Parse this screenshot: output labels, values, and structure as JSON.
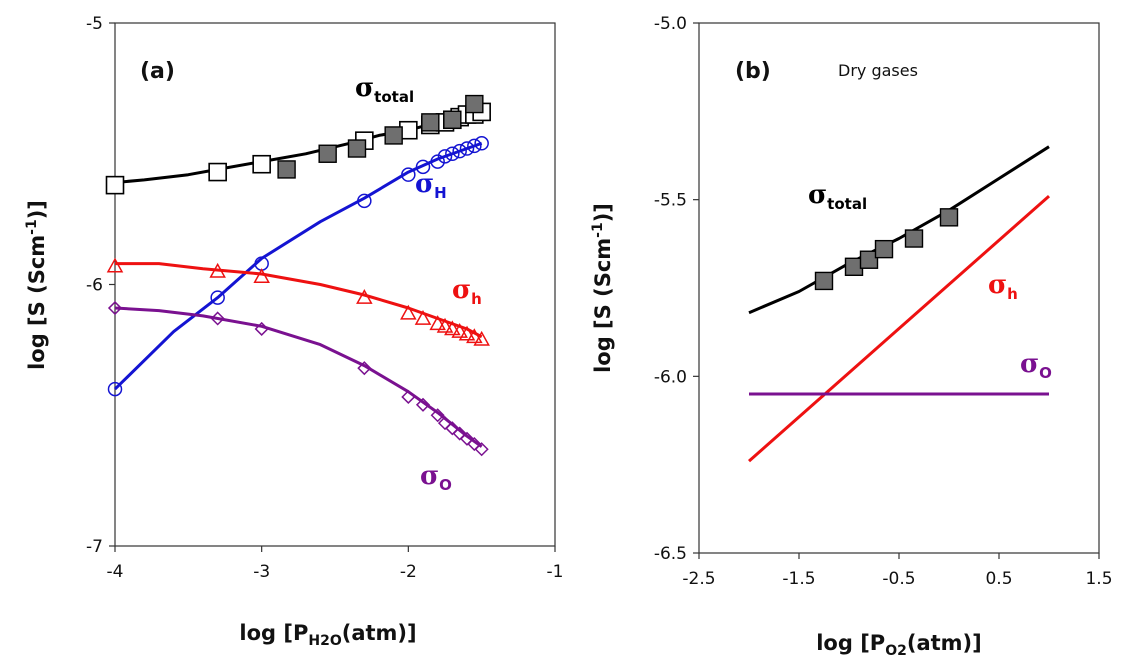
{
  "chart_data": [
    {
      "type": "line",
      "panel_label": "(a)",
      "xlabel": "log [P",
      "xlabel_sub": "H2O",
      "xlabel_tail": "(atm)]",
      "ylabel": "log [S (Scm",
      "ylabel_sup": "-1",
      "ylabel_tail": ")]",
      "xlim": [
        -4,
        -1
      ],
      "ylim": [
        -7,
        -5
      ],
      "xticks": [
        "-4",
        "-3",
        "-2",
        "-1"
      ],
      "yticks": [
        "-5",
        "-6",
        "-7"
      ],
      "series": [
        {
          "key": "total",
          "symbol": "σ",
          "label_sub": "total",
          "color": "#000000",
          "line": [
            [
              -4.0,
              -5.61
            ],
            [
              -3.8,
              -5.6
            ],
            [
              -3.5,
              -5.58
            ],
            [
              -3.3,
              -5.56
            ],
            [
              -3.0,
              -5.53
            ],
            [
              -2.7,
              -5.5
            ],
            [
              -2.4,
              -5.46
            ],
            [
              -2.2,
              -5.43
            ],
            [
              -2.0,
              -5.41
            ],
            [
              -1.8,
              -5.38
            ],
            [
              -1.6,
              -5.36
            ],
            [
              -1.5,
              -5.35
            ]
          ],
          "markers_open": [
            [
              -4.0,
              -5.62
            ],
            [
              -3.3,
              -5.57
            ],
            [
              -3.0,
              -5.54
            ],
            [
              -2.3,
              -5.45
            ],
            [
              -2.0,
              -5.41
            ],
            [
              -1.85,
              -5.39
            ],
            [
              -1.75,
              -5.38
            ],
            [
              -1.7,
              -5.37
            ],
            [
              -1.65,
              -5.36
            ],
            [
              -1.6,
              -5.35
            ],
            [
              -1.55,
              -5.35
            ],
            [
              -1.5,
              -5.34
            ]
          ],
          "markers_filled": [
            [
              -2.83,
              -5.56
            ],
            [
              -2.55,
              -5.5
            ],
            [
              -2.35,
              -5.48
            ],
            [
              -2.1,
              -5.43
            ],
            [
              -1.85,
              -5.38
            ],
            [
              -1.7,
              -5.37
            ],
            [
              -1.55,
              -5.31
            ]
          ]
        },
        {
          "key": "H",
          "symbol": "σ",
          "label_sub": "H",
          "color": "#1414d2",
          "line": [
            [
              -4.0,
              -6.4
            ],
            [
              -3.6,
              -6.18
            ],
            [
              -3.3,
              -6.05
            ],
            [
              -3.0,
              -5.9
            ],
            [
              -2.6,
              -5.76
            ],
            [
              -2.3,
              -5.67
            ],
            [
              -2.0,
              -5.57
            ],
            [
              -1.8,
              -5.52
            ],
            [
              -1.6,
              -5.48
            ],
            [
              -1.5,
              -5.46
            ]
          ],
          "markers_open": [
            [
              -4.0,
              -6.4
            ],
            [
              -3.3,
              -6.05
            ],
            [
              -3.0,
              -5.92
            ],
            [
              -2.3,
              -5.68
            ],
            [
              -2.0,
              -5.58
            ],
            [
              -1.9,
              -5.55
            ],
            [
              -1.8,
              -5.53
            ],
            [
              -1.75,
              -5.51
            ],
            [
              -1.7,
              -5.5
            ],
            [
              -1.65,
              -5.49
            ],
            [
              -1.6,
              -5.48
            ],
            [
              -1.55,
              -5.47
            ],
            [
              -1.5,
              -5.46
            ]
          ]
        },
        {
          "key": "h",
          "symbol": "σ",
          "label_sub": "h",
          "color": "#ee1111",
          "line": [
            [
              -4.0,
              -5.92
            ],
            [
              -3.7,
              -5.92
            ],
            [
              -3.4,
              -5.94
            ],
            [
              -3.0,
              -5.96
            ],
            [
              -2.6,
              -6.0
            ],
            [
              -2.3,
              -6.04
            ],
            [
              -2.0,
              -6.09
            ],
            [
              -1.8,
              -6.13
            ],
            [
              -1.6,
              -6.17
            ],
            [
              -1.5,
              -6.2
            ]
          ],
          "markers_open": [
            [
              -4.0,
              -5.93
            ],
            [
              -3.3,
              -5.95
            ],
            [
              -3.0,
              -5.97
            ],
            [
              -2.3,
              -6.05
            ],
            [
              -2.0,
              -6.11
            ],
            [
              -1.9,
              -6.13
            ],
            [
              -1.8,
              -6.15
            ],
            [
              -1.75,
              -6.16
            ],
            [
              -1.7,
              -6.17
            ],
            [
              -1.65,
              -6.18
            ],
            [
              -1.6,
              -6.19
            ],
            [
              -1.55,
              -6.2
            ],
            [
              -1.5,
              -6.21
            ]
          ]
        },
        {
          "key": "O",
          "symbol": "σ",
          "label_sub": "O",
          "color": "#7a1190",
          "line": [
            [
              -4.0,
              -6.09
            ],
            [
              -3.7,
              -6.1
            ],
            [
              -3.4,
              -6.12
            ],
            [
              -3.0,
              -6.16
            ],
            [
              -2.6,
              -6.23
            ],
            [
              -2.3,
              -6.31
            ],
            [
              -2.0,
              -6.41
            ],
            [
              -1.8,
              -6.49
            ],
            [
              -1.6,
              -6.58
            ],
            [
              -1.5,
              -6.62
            ]
          ],
          "markers_open": [
            [
              -4.0,
              -6.09
            ],
            [
              -3.3,
              -6.13
            ],
            [
              -3.0,
              -6.17
            ],
            [
              -2.3,
              -6.32
            ],
            [
              -2.0,
              -6.43
            ],
            [
              -1.9,
              -6.46
            ],
            [
              -1.8,
              -6.5
            ],
            [
              -1.75,
              -6.53
            ],
            [
              -1.7,
              -6.55
            ],
            [
              -1.65,
              -6.57
            ],
            [
              -1.6,
              -6.59
            ],
            [
              -1.55,
              -6.61
            ],
            [
              -1.5,
              -6.63
            ]
          ]
        }
      ]
    },
    {
      "type": "line",
      "panel_label": "(b)",
      "note": "Dry gases",
      "xlabel": "log [P",
      "xlabel_sub": "O2",
      "xlabel_tail": "(atm)]",
      "ylabel": "log [S (Scm",
      "ylabel_sup": "-1",
      "ylabel_tail": ")]",
      "xlim": [
        -2.5,
        1.5
      ],
      "ylim": [
        -6.5,
        -5.0
      ],
      "xticks": [
        "-2.5",
        "-1.5",
        "-0.5",
        "0.5",
        "1.5"
      ],
      "yticks": [
        "-5.0",
        "-5.5",
        "-6.0",
        "-6.5"
      ],
      "series": [
        {
          "key": "total",
          "symbol": "σ",
          "label_sub": "total",
          "color": "#000000",
          "line": [
            [
              -2.0,
              -5.82
            ],
            [
              -1.5,
              -5.76
            ],
            [
              -1.0,
              -5.68
            ],
            [
              -0.5,
              -5.61
            ],
            [
              0.0,
              -5.53
            ],
            [
              0.5,
              -5.44
            ],
            [
              1.0,
              -5.35
            ]
          ],
          "markers_filled": [
            [
              -1.25,
              -5.73
            ],
            [
              -0.95,
              -5.69
            ],
            [
              -0.8,
              -5.67
            ],
            [
              -0.65,
              -5.64
            ],
            [
              -0.35,
              -5.61
            ],
            [
              0.0,
              -5.55
            ]
          ]
        },
        {
          "key": "h",
          "symbol": "σ",
          "label_sub": "h",
          "color": "#ee1111",
          "line": [
            [
              -2.0,
              -6.24
            ],
            [
              1.0,
              -5.49
            ]
          ]
        },
        {
          "key": "O",
          "symbol": "σ",
          "label_sub": "O",
          "color": "#7a1190",
          "line": [
            [
              -2.0,
              -6.05
            ],
            [
              1.0,
              -6.05
            ]
          ]
        }
      ]
    }
  ]
}
